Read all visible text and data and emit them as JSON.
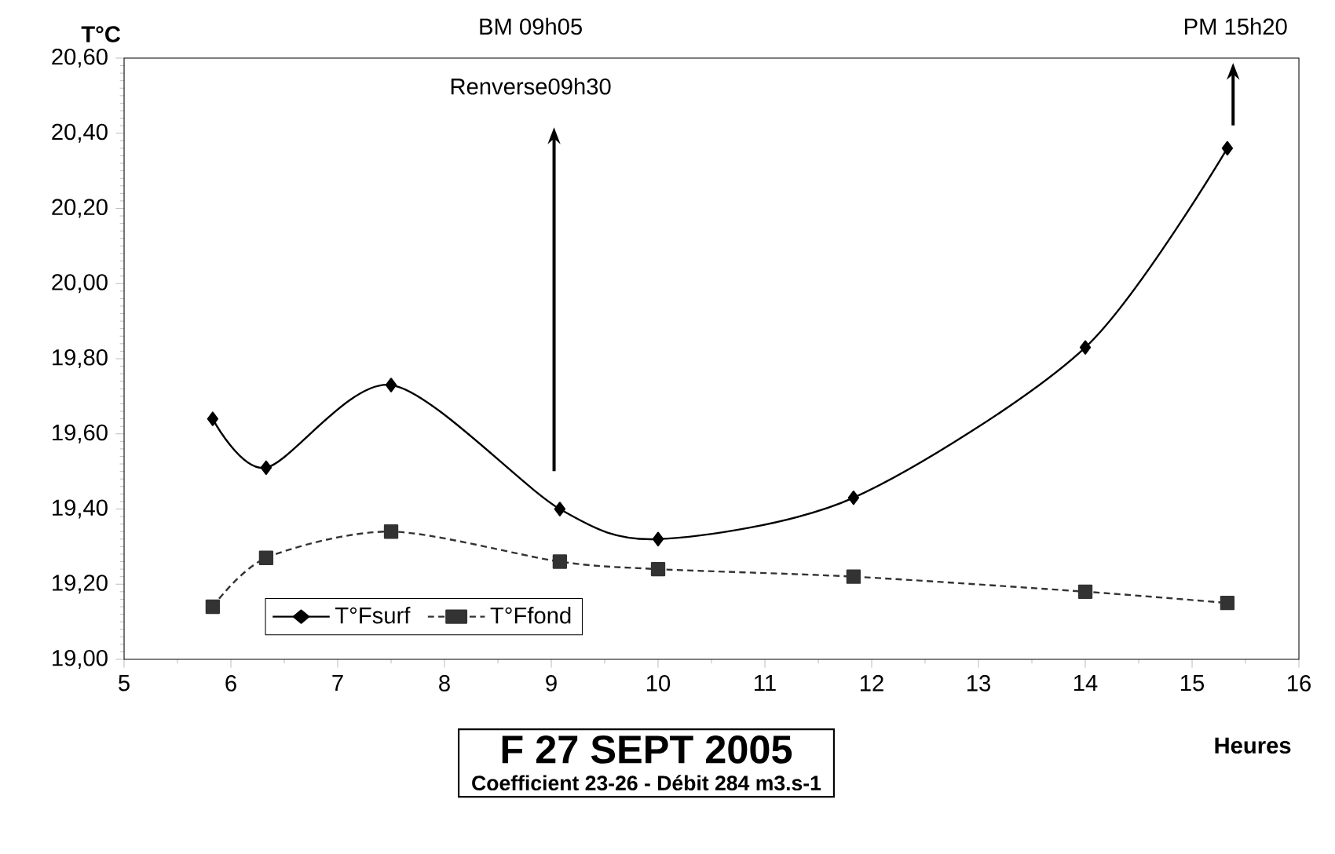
{
  "chart_data": {
    "type": "line",
    "title": "F 27 SEPT 2005",
    "subtitle": "Coefficient 23-26 - Débit 284 m3.s-1",
    "xlabel": "Heures",
    "ylabel": "T°C",
    "x": [
      5.83,
      6.33,
      7.5,
      9.08,
      10.0,
      11.83,
      14.0,
      15.33
    ],
    "series": [
      {
        "name": "T°Fsurf",
        "color": "#000000",
        "marker": "diamond",
        "line_style": "solid",
        "values": [
          19.64,
          19.51,
          19.73,
          19.4,
          19.32,
          19.43,
          19.83,
          20.36
        ]
      },
      {
        "name": "T°Ffond",
        "color": "#333333",
        "marker": "square",
        "line_style": "dashed",
        "values": [
          19.14,
          19.27,
          19.34,
          19.26,
          19.24,
          19.22,
          19.18,
          19.15
        ]
      }
    ],
    "xlim": [
      5,
      16
    ],
    "xticks": [
      5,
      6,
      7,
      8,
      9,
      10,
      11,
      12,
      13,
      14,
      15,
      16
    ],
    "ylim": [
      19.0,
      20.6
    ],
    "yticks": [
      {
        "value": 19.0,
        "label": "19,00"
      },
      {
        "value": 19.2,
        "label": "19,20"
      },
      {
        "value": 19.4,
        "label": "19,40"
      },
      {
        "value": 19.6,
        "label": "19,60"
      },
      {
        "value": 19.8,
        "label": "19,80"
      },
      {
        "value": 20.0,
        "label": "20,00"
      },
      {
        "value": 20.2,
        "label": "20,20"
      },
      {
        "value": 20.4,
        "label": "20,40"
      },
      {
        "value": 20.6,
        "label": "20,60"
      }
    ],
    "annotations": [
      "BM 09h05",
      "Renverse09h30",
      "PM 15h20"
    ],
    "legend": "bottom left",
    "grid": false
  }
}
